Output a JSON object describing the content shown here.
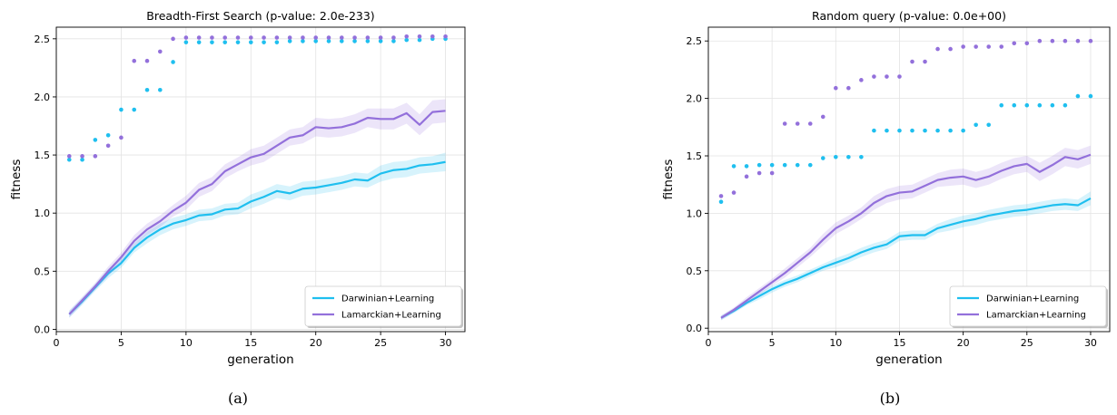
{
  "chart_data": [
    {
      "type": "line",
      "title": "Breadth-First Search (p-value: 2.0e-233)",
      "caption": "(a)",
      "xlabel": "generation",
      "ylabel": "fitness",
      "xlim": [
        0,
        31.5
      ],
      "ylim": [
        -0.02,
        2.6
      ],
      "xticks": [
        "0",
        "5",
        "10",
        "15",
        "20",
        "25",
        "30"
      ],
      "xtick_values": [
        0,
        5,
        10,
        15,
        20,
        25,
        30
      ],
      "yticks": [
        "0.0",
        "0.5",
        "1.0",
        "1.5",
        "2.0",
        "2.5"
      ],
      "ytick_values": [
        0.0,
        0.5,
        1.0,
        1.5,
        2.0,
        2.5
      ],
      "grid": true,
      "legend_position": "lower-right",
      "x": [
        1,
        2,
        3,
        4,
        5,
        6,
        7,
        8,
        9,
        10,
        11,
        12,
        13,
        14,
        15,
        16,
        17,
        18,
        19,
        20,
        21,
        22,
        23,
        24,
        25,
        26,
        27,
        28,
        29,
        30
      ],
      "series": [
        {
          "name": "Darwinian+Learning",
          "color": "#1fbfef",
          "mean": [
            0.13,
            0.24,
            0.36,
            0.48,
            0.57,
            0.7,
            0.79,
            0.86,
            0.91,
            0.94,
            0.98,
            0.99,
            1.03,
            1.04,
            1.1,
            1.14,
            1.19,
            1.17,
            1.21,
            1.22,
            1.24,
            1.26,
            1.29,
            1.28,
            1.34,
            1.37,
            1.38,
            1.41,
            1.42,
            1.44
          ],
          "band": [
            0.03,
            0.03,
            0.03,
            0.04,
            0.04,
            0.04,
            0.05,
            0.05,
            0.05,
            0.05,
            0.05,
            0.05,
            0.05,
            0.05,
            0.06,
            0.06,
            0.06,
            0.06,
            0.06,
            0.06,
            0.06,
            0.06,
            0.06,
            0.06,
            0.07,
            0.07,
            0.07,
            0.07,
            0.07,
            0.08
          ],
          "best": [
            1.46,
            1.46,
            1.63,
            1.67,
            1.89,
            1.89,
            2.06,
            2.06,
            2.3,
            2.47,
            2.47,
            2.47,
            2.47,
            2.47,
            2.47,
            2.47,
            2.47,
            2.48,
            2.48,
            2.48,
            2.48,
            2.48,
            2.48,
            2.48,
            2.48,
            2.48,
            2.49,
            2.49,
            2.5,
            2.5
          ]
        },
        {
          "name": "Lamarckian+Learning",
          "color": "#9370db",
          "mean": [
            0.13,
            0.25,
            0.37,
            0.5,
            0.62,
            0.76,
            0.86,
            0.93,
            1.02,
            1.09,
            1.2,
            1.25,
            1.36,
            1.42,
            1.48,
            1.51,
            1.58,
            1.65,
            1.67,
            1.74,
            1.73,
            1.74,
            1.77,
            1.82,
            1.81,
            1.81,
            1.86,
            1.76,
            1.87,
            1.88
          ],
          "band": [
            0.03,
            0.03,
            0.03,
            0.04,
            0.04,
            0.05,
            0.05,
            0.05,
            0.05,
            0.06,
            0.06,
            0.06,
            0.06,
            0.06,
            0.07,
            0.07,
            0.07,
            0.07,
            0.07,
            0.08,
            0.08,
            0.08,
            0.08,
            0.08,
            0.09,
            0.09,
            0.09,
            0.09,
            0.1,
            0.1
          ],
          "best": [
            1.49,
            1.49,
            1.49,
            1.58,
            1.65,
            2.31,
            2.31,
            2.39,
            2.5,
            2.51,
            2.51,
            2.51,
            2.51,
            2.51,
            2.51,
            2.51,
            2.51,
            2.51,
            2.51,
            2.51,
            2.51,
            2.51,
            2.51,
            2.51,
            2.51,
            2.51,
            2.52,
            2.52,
            2.52,
            2.52
          ]
        }
      ]
    },
    {
      "type": "line",
      "title": "Random query (p-value: 0.0e+00)",
      "caption": "(b)",
      "xlabel": "generation",
      "ylabel": "fitness",
      "xlim": [
        0,
        31.5
      ],
      "ylim": [
        -0.03,
        2.62
      ],
      "xticks": [
        "0",
        "5",
        "10",
        "15",
        "20",
        "25",
        "30"
      ],
      "xtick_values": [
        0,
        5,
        10,
        15,
        20,
        25,
        30
      ],
      "yticks": [
        "0.0",
        "0.5",
        "1.0",
        "1.5",
        "2.0",
        "2.5"
      ],
      "ytick_values": [
        0.0,
        0.5,
        1.0,
        1.5,
        2.0,
        2.5
      ],
      "grid": true,
      "legend_position": "lower-right",
      "x": [
        1,
        2,
        3,
        4,
        5,
        6,
        7,
        8,
        9,
        10,
        11,
        12,
        13,
        14,
        15,
        16,
        17,
        18,
        19,
        20,
        21,
        22,
        23,
        24,
        25,
        26,
        27,
        28,
        29,
        30
      ],
      "series": [
        {
          "name": "Darwinian+Learning",
          "color": "#1fbfef",
          "mean": [
            0.09,
            0.15,
            0.22,
            0.28,
            0.34,
            0.39,
            0.43,
            0.48,
            0.53,
            0.57,
            0.61,
            0.66,
            0.7,
            0.73,
            0.8,
            0.81,
            0.81,
            0.87,
            0.9,
            0.93,
            0.95,
            0.98,
            1.0,
            1.02,
            1.03,
            1.05,
            1.07,
            1.08,
            1.07,
            1.13
          ],
          "band": [
            0.02,
            0.02,
            0.02,
            0.03,
            0.03,
            0.03,
            0.03,
            0.03,
            0.03,
            0.04,
            0.04,
            0.04,
            0.04,
            0.04,
            0.04,
            0.04,
            0.04,
            0.04,
            0.05,
            0.05,
            0.05,
            0.05,
            0.05,
            0.05,
            0.05,
            0.05,
            0.05,
            0.05,
            0.05,
            0.06
          ],
          "best": [
            1.1,
            1.41,
            1.41,
            1.42,
            1.42,
            1.42,
            1.42,
            1.42,
            1.48,
            1.49,
            1.49,
            1.49,
            1.72,
            1.72,
            1.72,
            1.72,
            1.72,
            1.72,
            1.72,
            1.72,
            1.77,
            1.77,
            1.94,
            1.94,
            1.94,
            1.94,
            1.94,
            1.94,
            2.02,
            2.02
          ]
        },
        {
          "name": "Lamarckian+Learning",
          "color": "#9370db",
          "mean": [
            0.09,
            0.16,
            0.24,
            0.32,
            0.4,
            0.48,
            0.57,
            0.66,
            0.77,
            0.87,
            0.93,
            1.0,
            1.09,
            1.15,
            1.18,
            1.19,
            1.24,
            1.29,
            1.31,
            1.32,
            1.29,
            1.32,
            1.37,
            1.41,
            1.43,
            1.36,
            1.42,
            1.49,
            1.47,
            1.51
          ],
          "band": [
            0.02,
            0.02,
            0.03,
            0.03,
            0.03,
            0.04,
            0.04,
            0.04,
            0.05,
            0.05,
            0.05,
            0.05,
            0.06,
            0.06,
            0.06,
            0.06,
            0.06,
            0.06,
            0.07,
            0.07,
            0.07,
            0.07,
            0.07,
            0.07,
            0.07,
            0.08,
            0.08,
            0.08,
            0.08,
            0.08
          ],
          "best": [
            1.15,
            1.18,
            1.32,
            1.35,
            1.35,
            1.78,
            1.78,
            1.78,
            1.84,
            2.09,
            2.09,
            2.16,
            2.19,
            2.19,
            2.19,
            2.32,
            2.32,
            2.43,
            2.43,
            2.45,
            2.45,
            2.45,
            2.45,
            2.48,
            2.48,
            2.5,
            2.5,
            2.5,
            2.5,
            2.5
          ]
        }
      ]
    }
  ]
}
